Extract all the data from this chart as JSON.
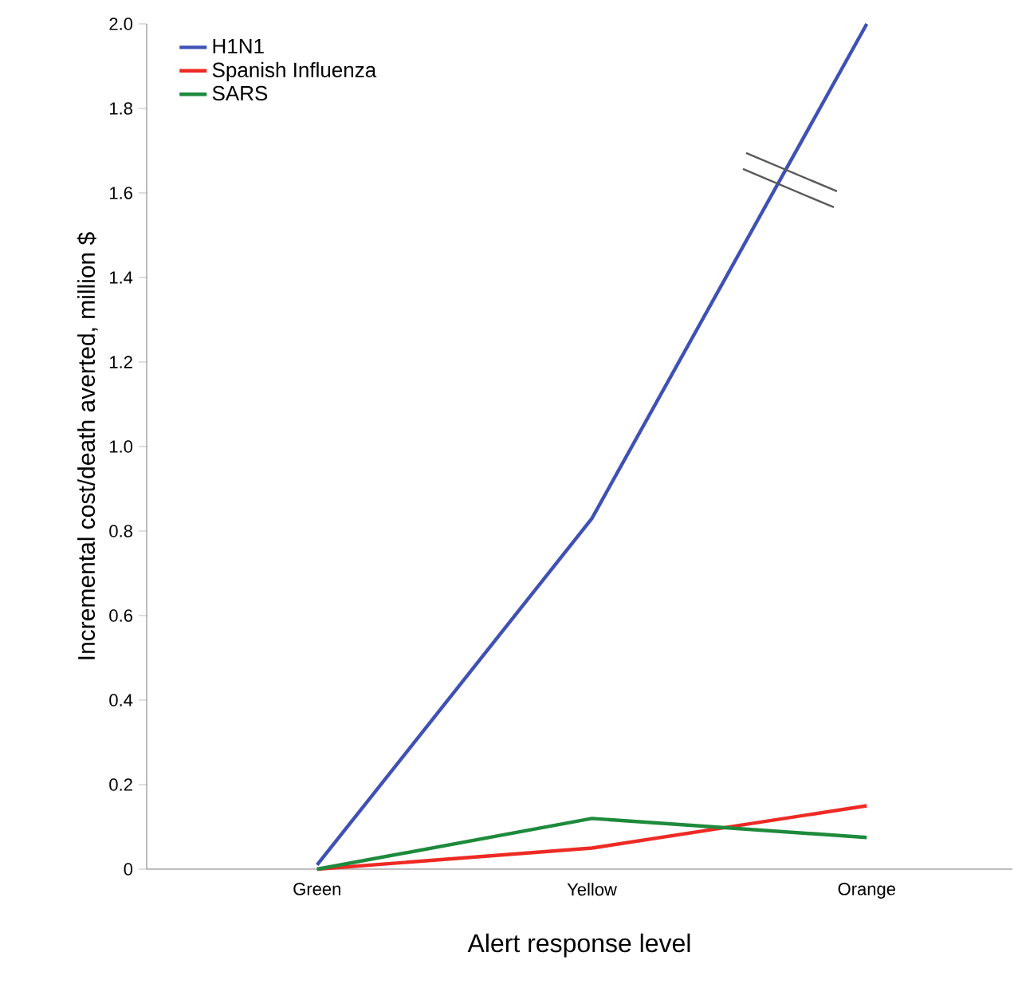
{
  "chart_data": {
    "type": "line",
    "xlabel": "Alert response level",
    "ylabel": "Incremental cost/death averted, million $",
    "categories": [
      "Green",
      "Yellow",
      "Orange"
    ],
    "series": [
      {
        "name": "H1N1",
        "color": "#3f51b5",
        "values": [
          0.01,
          0.83,
          2.0
        ]
      },
      {
        "name": "Spanish Influenza",
        "color": "#ee2a24",
        "values": [
          0,
          0.05,
          0.15
        ]
      },
      {
        "name": "SARS",
        "color": "#1e8a3c",
        "values": [
          0,
          0.12,
          0.075
        ]
      }
    ],
    "ylim": [
      0,
      2.0
    ],
    "yticks": [
      {
        "value": 0,
        "label": "0"
      },
      0.2,
      0.4,
      0.6,
      0.8,
      {
        "value": 1.0,
        "label": "1.0"
      },
      1.2,
      1.4,
      1.6,
      1.8,
      {
        "value": 2.0,
        "label": "2.0"
      }
    ],
    "legend": "top left",
    "grid": false,
    "marker": "none",
    "line_style": "solid"
  }
}
